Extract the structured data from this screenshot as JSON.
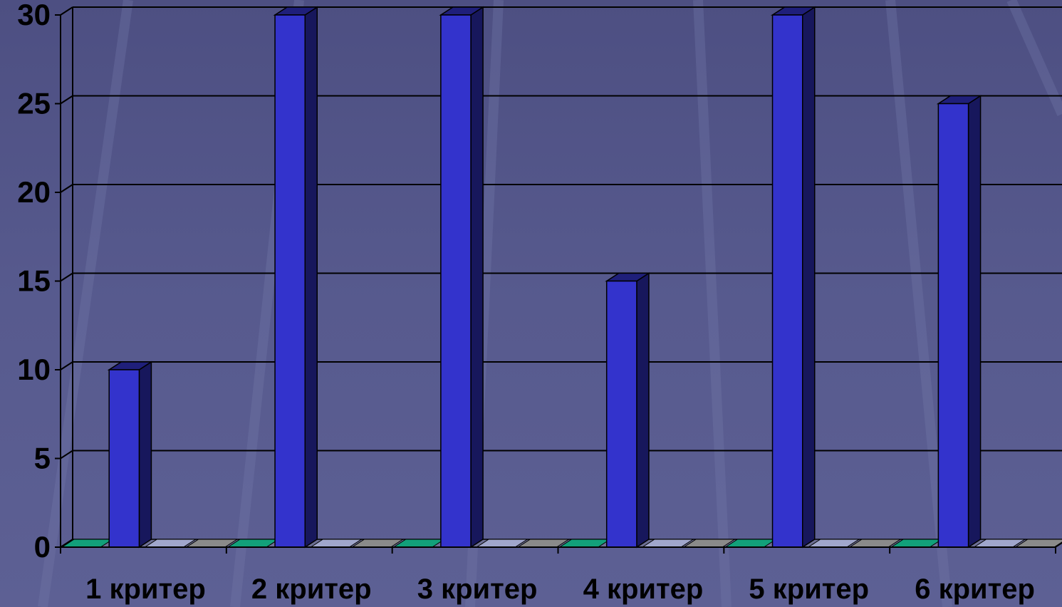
{
  "chart_data": {
    "type": "bar",
    "title": "",
    "xlabel": "",
    "ylabel": "",
    "categories": [
      "1 критер",
      "2 критер",
      "3 критер",
      "4 критер",
      "5 критер",
      "6 критер"
    ],
    "series": [
      {
        "values": [
          0,
          0,
          0,
          0,
          0,
          0
        ],
        "color": "#12a07a"
      },
      {
        "values": [
          10,
          30,
          30,
          15,
          30,
          25
        ],
        "color": "#3333cc"
      },
      {
        "values": [
          0,
          0,
          0,
          0,
          0,
          0
        ],
        "color": "#a0a6cc"
      },
      {
        "values": [
          0,
          0,
          0,
          0,
          0,
          0
        ],
        "color": "#8a8a8a"
      }
    ],
    "ylim": [
      0,
      30
    ],
    "yticks": [
      0,
      5,
      10,
      15,
      20,
      25,
      30
    ],
    "grid": true,
    "legend": "none"
  }
}
